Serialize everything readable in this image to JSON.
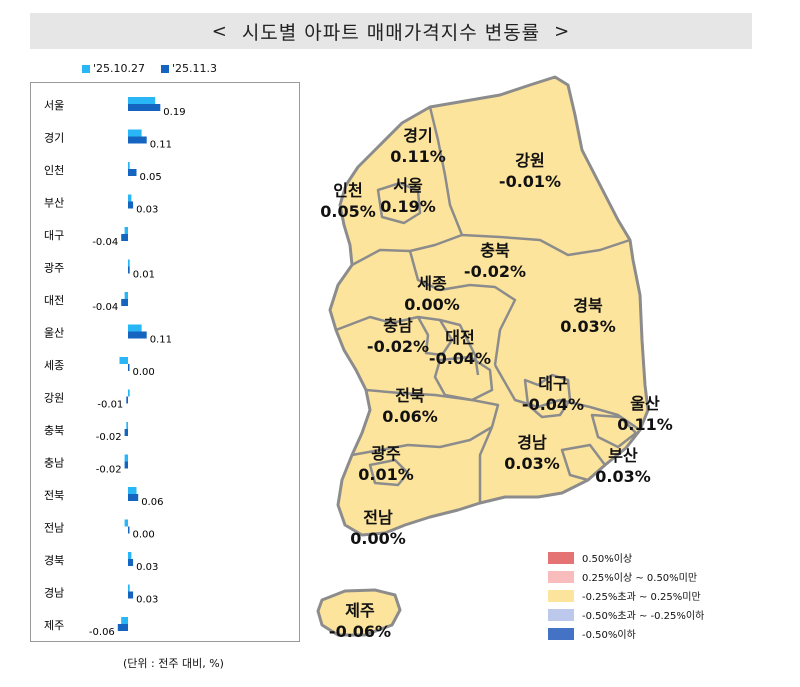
{
  "header": {
    "title": "시도별 아파트 매매가격지수 변동률",
    "left_chevron": "<",
    "right_chevron": ">"
  },
  "legend": [
    {
      "label": "'25.10.27",
      "color": "#29b6f6"
    },
    {
      "label": "'25.11.3",
      "color": "#1565c0"
    }
  ],
  "unit_note": "(단위 : 전주 대비, %)",
  "chart_data": {
    "type": "bar",
    "orientation": "horizontal",
    "categories": [
      "서울",
      "경기",
      "인천",
      "부산",
      "대구",
      "광주",
      "대전",
      "울산",
      "세종",
      "강원",
      "충북",
      "충남",
      "전북",
      "전남",
      "경북",
      "경남",
      "제주"
    ],
    "series": [
      {
        "name": "'25.10.27",
        "color": "#29b6f6",
        "values": [
          0.16,
          0.08,
          0.01,
          0.02,
          -0.02,
          0.01,
          -0.02,
          0.08,
          -0.05,
          0.01,
          -0.01,
          -0.02,
          0.05,
          -0.02,
          0.02,
          0.01,
          -0.04
        ]
      },
      {
        "name": "'25.11.3",
        "color": "#1565c0",
        "values": [
          0.19,
          0.11,
          0.05,
          0.03,
          -0.04,
          0.01,
          -0.04,
          0.11,
          0.0,
          -0.01,
          -0.02,
          -0.02,
          0.06,
          0.0,
          0.03,
          0.03,
          -0.06
        ]
      }
    ],
    "data_labels": [
      "0.19",
      "0.11",
      "0.05",
      "0.03",
      "-0.04",
      "0.01",
      "-0.04",
      "0.11",
      "0.00",
      "-0.01",
      "-0.02",
      "-0.02",
      "0.06",
      "0.00",
      "0.03",
      "0.03",
      "-0.06"
    ]
  },
  "map": {
    "fill": "#fde49c",
    "border": "#8c8c8c",
    "regions": [
      {
        "name": "경기",
        "value": "0.11%"
      },
      {
        "name": "강원",
        "value": "-0.01%"
      },
      {
        "name": "인천",
        "value": "0.05%"
      },
      {
        "name": "서울",
        "value": "0.19%"
      },
      {
        "name": "충북",
        "value": "-0.02%"
      },
      {
        "name": "세종",
        "value": "0.00%"
      },
      {
        "name": "경북",
        "value": "0.03%"
      },
      {
        "name": "충남",
        "value": "-0.02%"
      },
      {
        "name": "대전",
        "value": "-0.04%"
      },
      {
        "name": "대구",
        "value": "-0.04%"
      },
      {
        "name": "전북",
        "value": "0.06%"
      },
      {
        "name": "울산",
        "value": "0.11%"
      },
      {
        "name": "광주",
        "value": "0.01%"
      },
      {
        "name": "경남",
        "value": "0.03%"
      },
      {
        "name": "부산",
        "value": "0.03%"
      },
      {
        "name": "전남",
        "value": "0.00%"
      },
      {
        "name": "제주",
        "value": "-0.06%"
      }
    ]
  },
  "category_legend": [
    {
      "label": "0.50%이상",
      "color": "#e57373"
    },
    {
      "label": "0.25%이상 ~ 0.50%미만",
      "color": "#f8bcbc"
    },
    {
      "label": "-0.25%초과 ~ 0.25%미만",
      "color": "#fde49c"
    },
    {
      "label": "-0.50%초과 ~ -0.25%이하",
      "color": "#bcc8ec"
    },
    {
      "label": "-0.50%이하",
      "color": "#4472c4"
    }
  ]
}
